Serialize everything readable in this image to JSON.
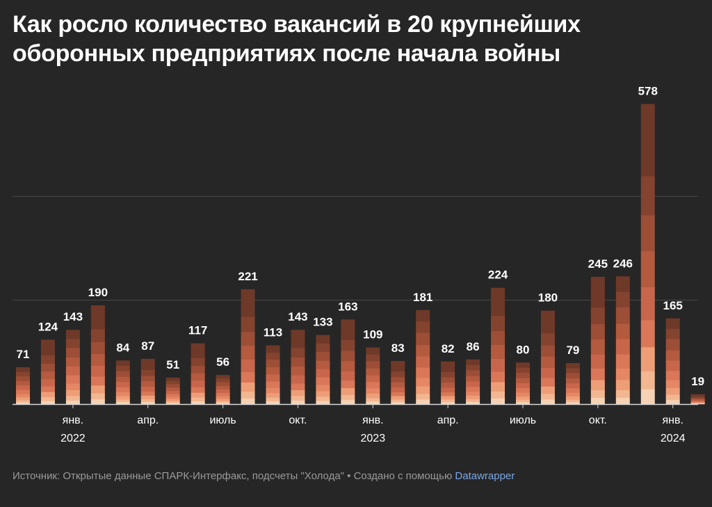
{
  "title": "Как росло количество вакансий в 20 крупнейших оборонных предприятиях после начала войны",
  "footer": {
    "source": "Источник: Открытые данные СПАРК-Интерфакс, подсчеты \"Холода\" • Создано с помощью",
    "tool": "Datawrapper"
  },
  "colors": {
    "background": "#262626",
    "grid": "#4a4a4a",
    "baseline": "#d8d8d8",
    "stack_palette": [
      "#f6d2b4",
      "#f2b791",
      "#ee9e77",
      "#e58765",
      "#d97758",
      "#c8664b",
      "#b35a3f",
      "#9c4e36",
      "#84432f",
      "#6e3928"
    ]
  },
  "chart_data": {
    "type": "bar",
    "stacked": true,
    "title": "Как росло количество вакансий в 20 крупнейших оборонных предприятиях после начала войны",
    "xlabel": "",
    "ylabel": "",
    "ylim": [
      0,
      600
    ],
    "gridlines": [
      0,
      200,
      400
    ],
    "values": [
      71,
      124,
      143,
      190,
      84,
      87,
      51,
      117,
      56,
      221,
      113,
      143,
      133,
      163,
      109,
      83,
      181,
      82,
      86,
      224,
      80,
      180,
      79,
      245,
      246,
      578,
      165,
      19
    ],
    "tick_labels": [
      {
        "bar_index": 2,
        "month": "янв.",
        "year": "2022"
      },
      {
        "bar_index": 5,
        "month": "апр.",
        "year": ""
      },
      {
        "bar_index": 8,
        "month": "июль",
        "year": ""
      },
      {
        "bar_index": 11,
        "month": "окт.",
        "year": ""
      },
      {
        "bar_index": 14,
        "month": "янв.",
        "year": "2023"
      },
      {
        "bar_index": 17,
        "month": "апр.",
        "year": ""
      },
      {
        "bar_index": 20,
        "month": "июль",
        "year": ""
      },
      {
        "bar_index": 23,
        "month": "окт.",
        "year": ""
      },
      {
        "bar_index": 26,
        "month": "янв.",
        "year": "2024"
      }
    ]
  }
}
